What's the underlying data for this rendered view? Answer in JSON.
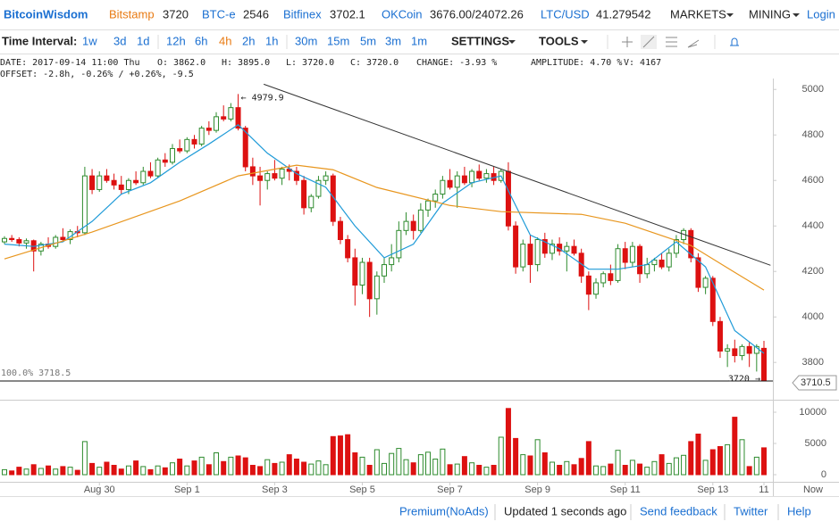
{
  "header": {
    "brand": "BitcoinWisdom",
    "markets": [
      {
        "name": "Bitstamp",
        "price": "3720"
      },
      {
        "name": "BTC-e",
        "price": "2546"
      },
      {
        "name": "Bitfinex",
        "price": "3702.1"
      },
      {
        "name": "OKCoin",
        "price": "3676.00/24072.26"
      },
      {
        "name": "LTC/USD",
        "price": "41.279542"
      }
    ],
    "menu": [
      "MARKETS",
      "MINING"
    ],
    "login": "Login"
  },
  "toolbar": {
    "label": "Time Interval:",
    "intervals": [
      "1w",
      "3d",
      "1d",
      "12h",
      "6h",
      "4h",
      "2h",
      "1h",
      "30m",
      "15m",
      "5m",
      "3m",
      "1m"
    ],
    "active": "4h",
    "menus": [
      "SETTINGS",
      "TOOLS"
    ]
  },
  "info": {
    "line1": [
      "DATE: 2017-09-14 11:00 Thu",
      "O: 3862.0",
      "H: 3895.0",
      "L: 3720.0",
      "C: 3720.0",
      "CHANGE: -3.93 %",
      "AMPLITUDE: 4.70 %",
      "V: 4167"
    ],
    "line2": "OFFSET: -2.8h, -0.26% / +0.26%, -9.5"
  },
  "chart_data": {
    "type": "candlestick",
    "up_color": "#2e8b2e",
    "down_color": "#dd1111",
    "categories": [
      null,
      null,
      null,
      null,
      null,
      null,
      null,
      null,
      null,
      null,
      null,
      null,
      null,
      "Aug 30",
      null,
      null,
      null,
      null,
      null,
      null,
      null,
      null,
      null,
      null,
      null,
      "Sep 1",
      null,
      null,
      null,
      null,
      null,
      null,
      null,
      null,
      null,
      null,
      null,
      "Sep 3",
      null,
      null,
      null,
      null,
      null,
      null,
      null,
      null,
      null,
      null,
      null,
      "Sep 5",
      null,
      null,
      null,
      null,
      null,
      null,
      null,
      null,
      null,
      null,
      null,
      "Sep 7",
      null,
      null,
      null,
      null,
      null,
      null,
      null,
      null,
      null,
      null,
      null,
      "Sep 9",
      null,
      null,
      null,
      null,
      null,
      null,
      null,
      null,
      null,
      null,
      null,
      "Sep 11",
      null,
      null,
      null,
      null,
      null,
      null,
      null,
      null,
      null,
      null,
      null,
      "Sep 13",
      null,
      null,
      null,
      null,
      null,
      null,
      "11"
    ],
    "now_label": "Now",
    "ohlc": [
      [
        4330,
        4355,
        4320,
        4345
      ],
      [
        4345,
        4360,
        4330,
        4340
      ],
      [
        4340,
        4350,
        4310,
        4325
      ],
      [
        4325,
        4345,
        4300,
        4335
      ],
      [
        4335,
        4340,
        4200,
        4290
      ],
      [
        4290,
        4330,
        4270,
        4320
      ],
      [
        4320,
        4350,
        4300,
        4310
      ],
      [
        4310,
        4360,
        4300,
        4350
      ],
      [
        4350,
        4390,
        4330,
        4340
      ],
      [
        4340,
        4385,
        4320,
        4375
      ],
      [
        4375,
        4400,
        4350,
        4370
      ],
      [
        4370,
        4660,
        4360,
        4620
      ],
      [
        4620,
        4650,
        4540,
        4560
      ],
      [
        4560,
        4640,
        4550,
        4620
      ],
      [
        4620,
        4650,
        4590,
        4600
      ],
      [
        4600,
        4630,
        4560,
        4580
      ],
      [
        4580,
        4620,
        4540,
        4560
      ],
      [
        4560,
        4610,
        4540,
        4600
      ],
      [
        4600,
        4640,
        4580,
        4590
      ],
      [
        4590,
        4660,
        4580,
        4640
      ],
      [
        4640,
        4680,
        4610,
        4620
      ],
      [
        4620,
        4700,
        4610,
        4690
      ],
      [
        4690,
        4720,
        4660,
        4680
      ],
      [
        4680,
        4760,
        4670,
        4740
      ],
      [
        4740,
        4780,
        4720,
        4730
      ],
      [
        4730,
        4790,
        4720,
        4780
      ],
      [
        4780,
        4800,
        4740,
        4760
      ],
      [
        4760,
        4840,
        4750,
        4830
      ],
      [
        4830,
        4860,
        4800,
        4820
      ],
      [
        4820,
        4900,
        4810,
        4880
      ],
      [
        4880,
        4930,
        4860,
        4870
      ],
      [
        4870,
        4940,
        4860,
        4920
      ],
      [
        4920,
        4979.9,
        4820,
        4830
      ],
      [
        4830,
        4840,
        4640,
        4660
      ],
      [
        4660,
        4700,
        4580,
        4620
      ],
      [
        4620,
        4660,
        4490,
        4600
      ],
      [
        4600,
        4640,
        4560,
        4630
      ],
      [
        4630,
        4690,
        4600,
        4610
      ],
      [
        4610,
        4660,
        4580,
        4650
      ],
      [
        4650,
        4670,
        4600,
        4640
      ],
      [
        4640,
        4660,
        4580,
        4600
      ],
      [
        4600,
        4620,
        4450,
        4480
      ],
      [
        4480,
        4540,
        4460,
        4530
      ],
      [
        4530,
        4620,
        4520,
        4600
      ],
      [
        4600,
        4640,
        4580,
        4620
      ],
      [
        4620,
        4630,
        4400,
        4420
      ],
      [
        4420,
        4440,
        4320,
        4340
      ],
      [
        4340,
        4360,
        4240,
        4260
      ],
      [
        4260,
        4300,
        4050,
        4140
      ],
      [
        4140,
        4260,
        4100,
        4240
      ],
      [
        4240,
        4260,
        4000,
        4080
      ],
      [
        4080,
        4200,
        4010,
        4180
      ],
      [
        4180,
        4260,
        4150,
        4230
      ],
      [
        4230,
        4320,
        4200,
        4260
      ],
      [
        4260,
        4420,
        4240,
        4380
      ],
      [
        4380,
        4460,
        4360,
        4420
      ],
      [
        4420,
        4450,
        4340,
        4380
      ],
      [
        4380,
        4500,
        4370,
        4470
      ],
      [
        4470,
        4520,
        4440,
        4510
      ],
      [
        4510,
        4560,
        4480,
        4540
      ],
      [
        4540,
        4620,
        4520,
        4600
      ],
      [
        4600,
        4650,
        4560,
        4570
      ],
      [
        4570,
        4640,
        4480,
        4620
      ],
      [
        4620,
        4660,
        4580,
        4590
      ],
      [
        4590,
        4650,
        4570,
        4640
      ],
      [
        4640,
        4670,
        4600,
        4610
      ],
      [
        4610,
        4650,
        4590,
        4630
      ],
      [
        4630,
        4660,
        4580,
        4600
      ],
      [
        4600,
        4650,
        4590,
        4640
      ],
      [
        4640,
        4680,
        4380,
        4400
      ],
      [
        4400,
        4420,
        4190,
        4220
      ],
      [
        4220,
        4340,
        4200,
        4320
      ],
      [
        4320,
        4360,
        4150,
        4230
      ],
      [
        4230,
        4350,
        4200,
        4340
      ],
      [
        4340,
        4370,
        4260,
        4280
      ],
      [
        4280,
        4340,
        4250,
        4320
      ],
      [
        4320,
        4350,
        4270,
        4290
      ],
      [
        4290,
        4330,
        4200,
        4310
      ],
      [
        4310,
        4340,
        4270,
        4280
      ],
      [
        4280,
        4300,
        4150,
        4180
      ],
      [
        4180,
        4200,
        4030,
        4100
      ],
      [
        4100,
        4170,
        4080,
        4150
      ],
      [
        4150,
        4200,
        4130,
        4190
      ],
      [
        4190,
        4230,
        4140,
        4160
      ],
      [
        4160,
        4320,
        4150,
        4300
      ],
      [
        4300,
        4330,
        4210,
        4240
      ],
      [
        4240,
        4330,
        4220,
        4310
      ],
      [
        4310,
        4320,
        4150,
        4190
      ],
      [
        4190,
        4260,
        4170,
        4230
      ],
      [
        4230,
        4260,
        4200,
        4250
      ],
      [
        4250,
        4280,
        4210,
        4220
      ],
      [
        4220,
        4300,
        4200,
        4280
      ],
      [
        4280,
        4360,
        4260,
        4340
      ],
      [
        4340,
        4390,
        4320,
        4380
      ],
      [
        4380,
        4390,
        4240,
        4260
      ],
      [
        4260,
        4280,
        4110,
        4130
      ],
      [
        4130,
        4180,
        4100,
        4170
      ],
      [
        4170,
        4180,
        3960,
        3980
      ],
      [
        3980,
        4000,
        3820,
        3850
      ],
      [
        3850,
        3880,
        3780,
        3860
      ],
      [
        3860,
        3900,
        3800,
        3830
      ],
      [
        3830,
        3880,
        3810,
        3870
      ],
      [
        3870,
        3890,
        3780,
        3840
      ],
      [
        3840,
        3880,
        3760,
        3870
      ],
      [
        3862,
        3895,
        3720,
        3720
      ]
    ],
    "volume": [
      800,
      600,
      1200,
      900,
      1600,
      1000,
      1400,
      900,
      1300,
      1200,
      700,
      5300,
      1800,
      1200,
      2000,
      1500,
      900,
      1400,
      2200,
      1300,
      800,
      1400,
      1100,
      1900,
      2500,
      1400,
      2200,
      2800,
      1600,
      3500,
      2100,
      2800,
      3000,
      2700,
      1500,
      1300,
      2400,
      1800,
      2000,
      3200,
      2500,
      2000,
      1700,
      2200,
      1600,
      6100,
      6200,
      6400,
      3500,
      2800,
      1500,
      4000,
      1800,
      3400,
      4200,
      2400,
      1900,
      3200,
      3600,
      2500,
      4100,
      1600,
      1700,
      2900,
      1900,
      1500,
      1200,
      1500,
      6000,
      10600,
      5800,
      3200,
      3000,
      5600,
      3500,
      2000,
      1500,
      2100,
      1600,
      2600,
      5300,
      1400,
      1300,
      1700,
      3900,
      1500,
      2300,
      1700,
      1200,
      2100,
      3200,
      1800,
      2700,
      3100,
      5300,
      6500,
      2300,
      4000,
      4500,
      4800,
      9200,
      5600,
      1300,
      2800,
      4300
    ],
    "lines": [
      {
        "color": "#1f9bd8",
        "x": [
          0,
          4,
          8,
          12,
          16,
          20,
          24,
          28,
          32,
          36,
          40,
          44,
          48,
          52,
          56,
          60,
          64,
          68,
          72,
          76,
          80,
          84,
          88,
          92,
          96,
          100,
          104
        ],
        "values": [
          4320,
          4310,
          4330,
          4420,
          4540,
          4590,
          4680,
          4760,
          4845,
          4720,
          4630,
          4570,
          4400,
          4260,
          4320,
          4500,
          4590,
          4620,
          4360,
          4300,
          4210,
          4210,
          4230,
          4330,
          4220,
          3940,
          3840
        ]
      },
      {
        "color": "#e8961e",
        "x": [
          0,
          12,
          24,
          32,
          40,
          45,
          51,
          61,
          68,
          79,
          85,
          94,
          100,
          104
        ],
        "values": [
          4255,
          4373,
          4510,
          4620,
          4667,
          4647,
          4569,
          4490,
          4463,
          4451,
          4412,
          4314,
          4196,
          4118
        ]
      }
    ],
    "trendline": {
      "x": [
        35.5,
        104.9
      ],
      "values": [
        5023,
        4227
      ]
    },
    "max_label": "← 4979.9",
    "last_label": "3720 →",
    "level": {
      "value": 3718.5,
      "label": "100.0% 3718.5"
    },
    "price_tag": 3710.5,
    "ylim": [
      3640,
      5150
    ],
    "yticks": [
      3800,
      4000,
      4200,
      4400,
      4600,
      4800,
      5000
    ],
    "vlim": [
      0,
      11000
    ],
    "vticks": [
      0,
      5000,
      10000
    ],
    "grid": false
  },
  "footer": {
    "links": [
      "Premium(NoAds)",
      "Updated 1 seconds ago",
      "Send feedback",
      "Twitter",
      "Help"
    ]
  }
}
